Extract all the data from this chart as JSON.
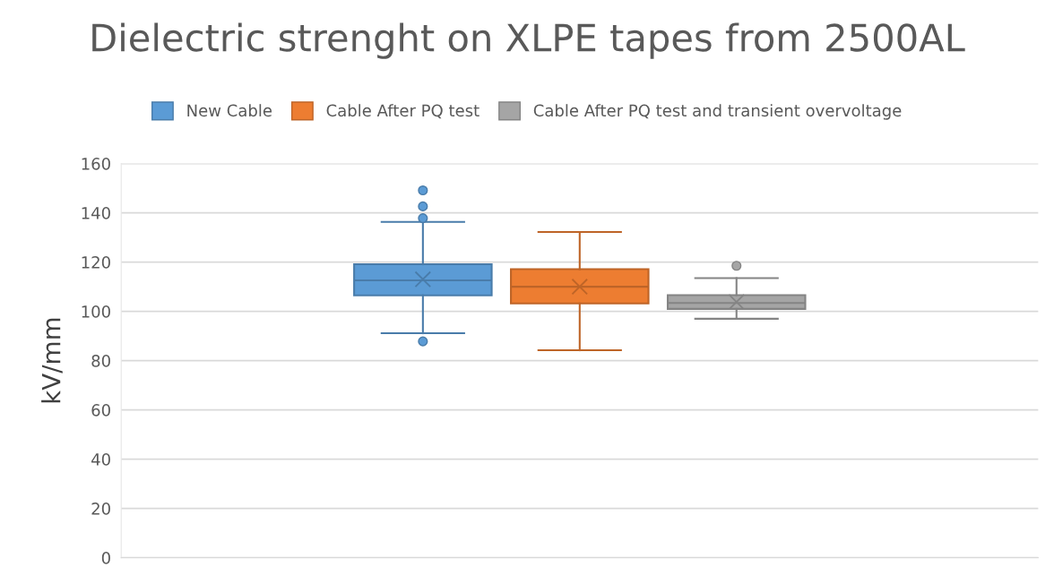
{
  "chart_data": {
    "type": "box",
    "title": "Dielectric strenght on XLPE tapes from 2500AL",
    "ylabel": "kV/mm",
    "categories": [
      null
    ],
    "series": [
      {
        "name": "New Cable",
        "color": "#5b9bd5",
        "boxes": [
          {
            "low": 91.1,
            "q1": 106.5,
            "median": 112.6,
            "q3": 119.1,
            "high": 136.3,
            "mean": 113,
            "outliers": [
              149.1,
              142.6,
              137.8,
              87.8
            ]
          }
        ]
      },
      {
        "name": "Cable After PQ test",
        "color": "#ed7d31",
        "boxes": [
          {
            "low": 84.2,
            "q1": 103.2,
            "median": 110,
            "q3": 117.1,
            "high": 132.2,
            "mean": 110
          }
        ]
      },
      {
        "name": "Cable After PQ test and transient overvoltage",
        "color": "#a5a5a5",
        "boxes": [
          {
            "low": 97,
            "q1": 101,
            "median": 103.4,
            "q3": 106.6,
            "high": 113.5,
            "mean": 103.8,
            "outliers": [
              118.5
            ]
          }
        ]
      }
    ],
    "ylim": [
      0,
      160
    ],
    "yticks": [
      0,
      20,
      40,
      60,
      80,
      100,
      120,
      140,
      160
    ],
    "grid": "y",
    "legend": "top"
  }
}
